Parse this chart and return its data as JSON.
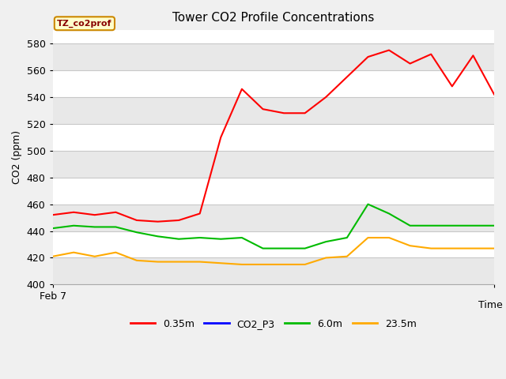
{
  "title": "Tower CO2 Profile Concentrations",
  "ylabel": "CO2 (ppm)",
  "xlabel": "Time",
  "xleft_label": "Feb 7",
  "ylim": [
    400,
    590
  ],
  "yticks": [
    400,
    420,
    440,
    460,
    480,
    500,
    520,
    540,
    560,
    580
  ],
  "fig_bg_color": "#f0f0f0",
  "plot_bg_color": "#ffffff",
  "band_color_light": "#ffffff",
  "band_color_dark": "#e8e8e8",
  "annotation_text": "TZ_co2prof",
  "annotation_bg": "#ffffcc",
  "annotation_border": "#cc8800",
  "annotation_text_color": "#880000",
  "series": {
    "0.35m": {
      "color": "#ff0000",
      "values": [
        452,
        454,
        452,
        454,
        448,
        447,
        448,
        453,
        510,
        546,
        531,
        528,
        528,
        540,
        555,
        570,
        575,
        565,
        572,
        548,
        571,
        542
      ]
    },
    "CO2_P3": {
      "color": "#0000ff",
      "values": [
        null,
        null,
        null,
        null,
        null,
        null,
        null,
        null,
        null,
        null,
        null,
        null,
        null,
        null,
        null,
        null,
        null,
        null,
        null,
        null,
        null,
        null
      ]
    },
    "6.0m": {
      "color": "#00bb00",
      "values": [
        442,
        444,
        443,
        443,
        439,
        436,
        434,
        435,
        434,
        435,
        427,
        427,
        427,
        432,
        435,
        460,
        453,
        444,
        444,
        444,
        444,
        444
      ]
    },
    "23.5m": {
      "color": "#ffaa00",
      "values": [
        421,
        424,
        421,
        424,
        418,
        417,
        417,
        417,
        416,
        415,
        415,
        415,
        415,
        420,
        421,
        435,
        435,
        429,
        427,
        427,
        427,
        427
      ]
    }
  },
  "legend_entries": [
    "0.35m",
    "CO2_P3",
    "6.0m",
    "23.5m"
  ],
  "legend_colors": [
    "#ff0000",
    "#0000ff",
    "#00bb00",
    "#ffaa00"
  ],
  "grid_line_color": "#c8c8c8"
}
